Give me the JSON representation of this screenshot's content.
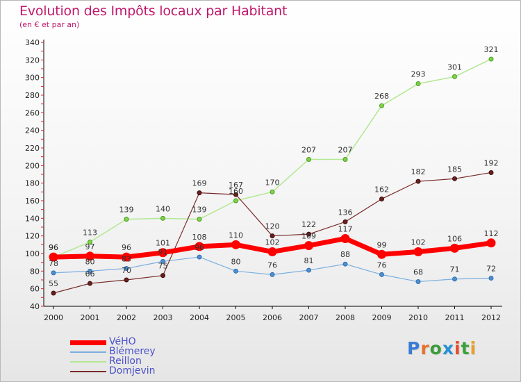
{
  "header": {
    "title": "Evolution des Impôts locaux par Habitant",
    "subtitle": "(en € et par an)"
  },
  "brand": {
    "text": "Proxiti",
    "letter_colors": [
      "#3a7bd5",
      "#e8702a",
      "#3a9b3a",
      "#2a8fd5",
      "#e84a2a",
      "#3aa03a",
      "#e8a02a"
    ]
  },
  "chart_data": {
    "type": "line",
    "title": "Evolution des Impôts locaux par Habitant",
    "subtitle": "(en € et par an)",
    "x": [
      "2000",
      "2001",
      "2002",
      "2003",
      "2004",
      "2005",
      "2006",
      "2007",
      "2008",
      "2009",
      "2010",
      "2011",
      "2012"
    ],
    "ylim": [
      40,
      340
    ],
    "yticks": [
      40,
      60,
      80,
      100,
      120,
      140,
      160,
      180,
      200,
      220,
      240,
      260,
      280,
      300,
      320,
      340
    ],
    "grid": "none",
    "legend_position": "bottom-left",
    "series": [
      {
        "name": "VéHO",
        "color": "#ff0000",
        "values": [
          96,
          97,
          96,
          101,
          108,
          110,
          102,
          109,
          117,
          99,
          102,
          106,
          112
        ]
      },
      {
        "name": "Blémerey",
        "color": "#5b9bd5",
        "values": [
          78,
          80,
          83,
          91,
          96,
          80,
          76,
          81,
          88,
          76,
          68,
          71,
          72
        ]
      },
      {
        "name": "Reillon",
        "color": "#aee67a",
        "values": [
          96,
          113,
          139,
          140,
          139,
          160,
          170,
          207,
          207,
          268,
          293,
          301,
          321
        ]
      },
      {
        "name": "Domjevin",
        "color": "#6b1f1f",
        "values": [
          55,
          66,
          70,
          75,
          169,
          167,
          120,
          122,
          136,
          162,
          182,
          185,
          192
        ]
      }
    ]
  }
}
